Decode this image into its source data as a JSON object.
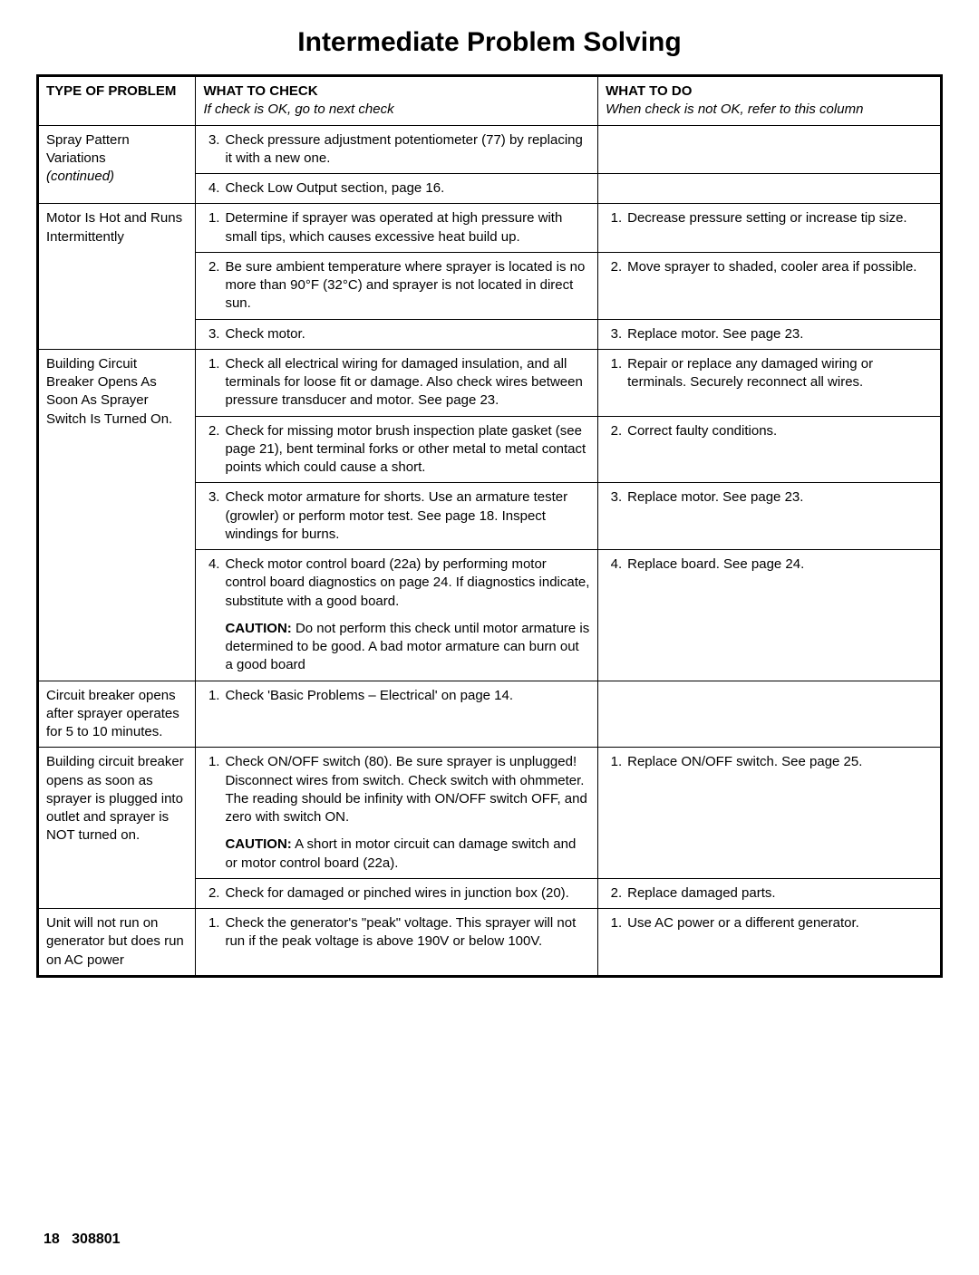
{
  "title": "Intermediate Problem Solving",
  "headers": {
    "problem": "TYPE OF PROBLEM",
    "check": "WHAT TO CHECK",
    "check_sub": "If check is OK, go to next check",
    "do": "WHAT TO DO",
    "do_sub": "When check is not OK, refer to this column"
  },
  "p1": {
    "problem_line1": "Spray Pattern Variations",
    "problem_line2": "(continued)",
    "r1_check": "Check pressure adjustment potentiometer (77) by replacing it with a new one.",
    "r2_check": "Check Low Output section, page 16."
  },
  "p2": {
    "problem": "Motor Is Hot and Runs Intermittently",
    "r1_check": "Determine if sprayer was operated at high pressure with small tips, which causes excessive heat build up.",
    "r1_do": "Decrease pressure setting or increase tip size.",
    "r2_check": "Be sure ambient temperature where sprayer is located is no more than 90°F (32°C) and sprayer is not located in direct sun.",
    "r2_do": "Move sprayer to shaded, cooler area if possible.",
    "r3_check": "Check motor.",
    "r3_do": "Replace motor. See page 23."
  },
  "p3": {
    "problem": "Building Circuit Breaker Opens As Soon As Sprayer Switch Is Turned On.",
    "r1_check": "Check all electrical wiring for damaged insulation, and all terminals for loose fit or damage. Also check wires between pressure transducer and motor. See page 23.",
    "r1_do": "Repair or replace any damaged wiring or terminals. Securely reconnect all wires.",
    "r2_check": "Check for missing motor brush inspection plate gasket (see page 21), bent terminal forks or other metal to metal contact points which could cause a short.",
    "r2_do": "Correct faulty conditions.",
    "r3_check": "Check motor armature for shorts. Use an armature tester (growler) or perform motor test. See page 18. Inspect windings for burns.",
    "r3_do": "Replace motor. See page 23.",
    "r4_check": "Check motor control board (22a) by performing motor control board diagnostics on page 24. If diagnostics indicate, substitute with a good board.",
    "r4_caution_label": "CAUTION:",
    "r4_caution": " Do not perform this check until motor armature is determined to be good. A bad motor armature can burn out a good board",
    "r4_do": "Replace board. See page 24."
  },
  "p4": {
    "problem": "Circuit breaker opens after sprayer operates for 5 to 10 minutes.",
    "r1_check": "Check 'Basic Problems – Electrical' on page 14."
  },
  "p5": {
    "problem": "Building circuit breaker opens as soon as sprayer is plugged into outlet and sprayer is NOT turned on.",
    "r1_check": "Check ON/OFF switch (80).  Be sure sprayer is unplugged!  Disconnect wires from switch.  Check switch with ohmmeter.  The reading should be infinity with ON/OFF switch OFF, and zero with switch ON.",
    "r1_caution_label": "CAUTION:",
    "r1_caution": " A short in motor circuit can damage switch and or motor control board (22a).",
    "r1_do": "Replace ON/OFF switch.  See page 25.",
    "r2_check": "Check for damaged or pinched wires in junction box (20).",
    "r2_do": "Replace damaged parts."
  },
  "p6": {
    "problem": "Unit will not run on generator but does run on AC power",
    "r1_check": "Check the generator's \"peak\" voltage. This sprayer will not run if the peak voltage is above 190V or below 100V.",
    "r1_do": "Use AC power or a different generator."
  },
  "footer": {
    "page": "18",
    "doc": "308801"
  }
}
